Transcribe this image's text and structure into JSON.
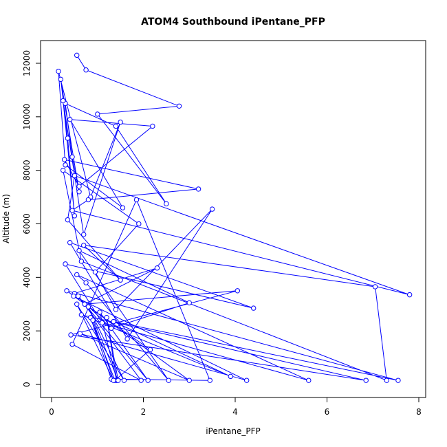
{
  "chart_data": {
    "type": "line",
    "title": "ATOM4 Southbound iPentane_PFP",
    "xlabel": "iPentane_PFP",
    "ylabel": "Altitude (m)",
    "xlim": [
      0,
      8
    ],
    "ylim": [
      0,
      12000
    ],
    "xticks": [
      0,
      2,
      4,
      6,
      8
    ],
    "yticks": [
      0,
      2000,
      4000,
      6000,
      8000,
      10000,
      12000
    ],
    "grid": false,
    "marker": "open-circle",
    "line_color": "#0000ff",
    "series": [
      {
        "x": [
          0.55,
          0.75,
          2.78,
          1.0,
          2.5,
          1.4,
          0.3,
          0.45,
          0.6,
          0.2,
          0.35,
          0.5,
          0.25,
          0.7,
          1.5,
          0.85,
          0.15,
          0.3,
          1.55,
          0.4,
          2.2,
          0.6,
          0.28,
          3.2,
          0.8,
          0.45,
          7.8,
          0.5,
          0.35,
          1.5,
          0.7,
          7.05,
          7.3,
          0.65,
          0.25,
          1.9,
          0.95,
          1.4,
          3.5,
          1.65,
          0.4,
          4.4,
          0.3,
          1.1,
          5.6,
          0.55,
          0.75,
          2.55,
          0.6,
          3.0,
          1.3,
          0.5,
          2.3,
          0.72,
          4.05,
          0.42,
          6.85,
          0.65,
          3.9,
          1.35,
          7.55,
          0.33,
          3.0,
          0.62,
          4.25,
          0.48,
          2.15,
          1.38,
          0.85,
          1.3,
          3.45,
          1.85,
          0.45,
          1.95,
          0.58,
          2.1,
          1.05,
          1.42,
          1.2,
          1.45,
          0.8,
          1.58,
          0.55,
          1.35,
          0.9
        ],
        "y": [
          12300,
          11750,
          10400,
          10100,
          6750,
          9650,
          10500,
          8500,
          7200,
          11400,
          9200,
          6300,
          10600,
          5600,
          9800,
          7000,
          11700,
          8200,
          6600,
          9900,
          9650,
          7400,
          8400,
          7300,
          6900,
          6500,
          3350,
          7800,
          6150,
          3900,
          5200,
          3650,
          150,
          4600,
          8000,
          6000,
          4200,
          2800,
          6550,
          1700,
          5300,
          2850,
          4500,
          2300,
          150,
          4100,
          3800,
          150,
          5000,
          3050,
          2100,
          3400,
          4350,
          3000,
          3500,
          1850,
          150,
          2600,
          300,
          2350,
          150,
          3500,
          150,
          1900,
          150,
          3300,
          1300,
          150,
          2500,
          200,
          150,
          6900,
          1500,
          150,
          3300,
          150,
          2700,
          150,
          2500,
          150,
          2900,
          150,
          3000,
          150,
          2400
        ]
      }
    ]
  }
}
